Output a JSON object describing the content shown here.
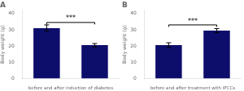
{
  "chart_data": [
    {
      "type": "bar",
      "title": "A",
      "categories": [
        null,
        null
      ],
      "values": [
        31.0,
        20.5
      ],
      "errors": [
        2.0,
        1.0
      ],
      "color": "#0d0d6b",
      "xlabel": "before and after induction of diabetes",
      "ylabel": "Body weight (g)",
      "ylim": [
        0,
        42
      ],
      "yticks": [
        0,
        10,
        20,
        30,
        40
      ],
      "grid": false,
      "tick_labels": "y",
      "annotations": [
        {
          "text": "***",
          "from": 0,
          "to": 1,
          "y": 34.5,
          "drop": 1.2
        }
      ]
    },
    {
      "type": "bar",
      "title": "B",
      "categories": [
        null,
        null
      ],
      "values": [
        20.5,
        29.5
      ],
      "errors": [
        1.5,
        1.2
      ],
      "color": "#0d0d6b",
      "xlabel": "before and after treatment with IPCCs",
      "ylabel": "Body weight (g)",
      "ylim": [
        0,
        42
      ],
      "yticks": [
        0,
        10,
        20,
        30,
        40
      ],
      "grid": false,
      "tick_labels": "y",
      "annotations": [
        {
          "text": "***",
          "from": 0,
          "to": 1,
          "y": 33.0,
          "drop": 1.2
        }
      ]
    }
  ]
}
